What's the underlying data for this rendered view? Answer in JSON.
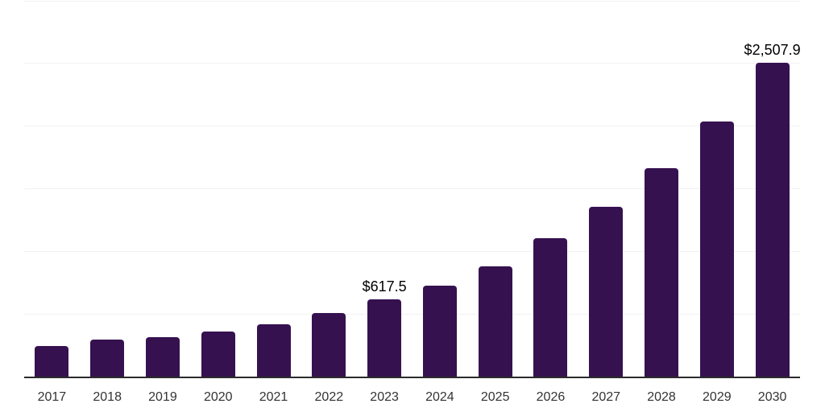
{
  "chart_data": {
    "type": "bar",
    "title": "",
    "xlabel": "",
    "ylabel": "",
    "categories": [
      "2017",
      "2018",
      "2019",
      "2020",
      "2021",
      "2022",
      "2023",
      "2024",
      "2025",
      "2026",
      "2027",
      "2028",
      "2029",
      "2030"
    ],
    "values": [
      241,
      297,
      313,
      361,
      420,
      505,
      617.5,
      729,
      880,
      1104,
      1355,
      1663,
      2034,
      2507.9
    ],
    "data_labels": {
      "2023": "$617.5",
      "2030": "$2,507.9"
    },
    "ylim": [
      0,
      3000
    ],
    "gridline_step": 500,
    "grid": true,
    "legend": false,
    "y_axis_labels_visible": false,
    "colors": {
      "bar": "#361150",
      "gridline": "#f1f1f1",
      "axis_line": "#2b2b2b",
      "value_label": "#000000",
      "tick_label": "#333333",
      "background": "#ffffff"
    }
  }
}
